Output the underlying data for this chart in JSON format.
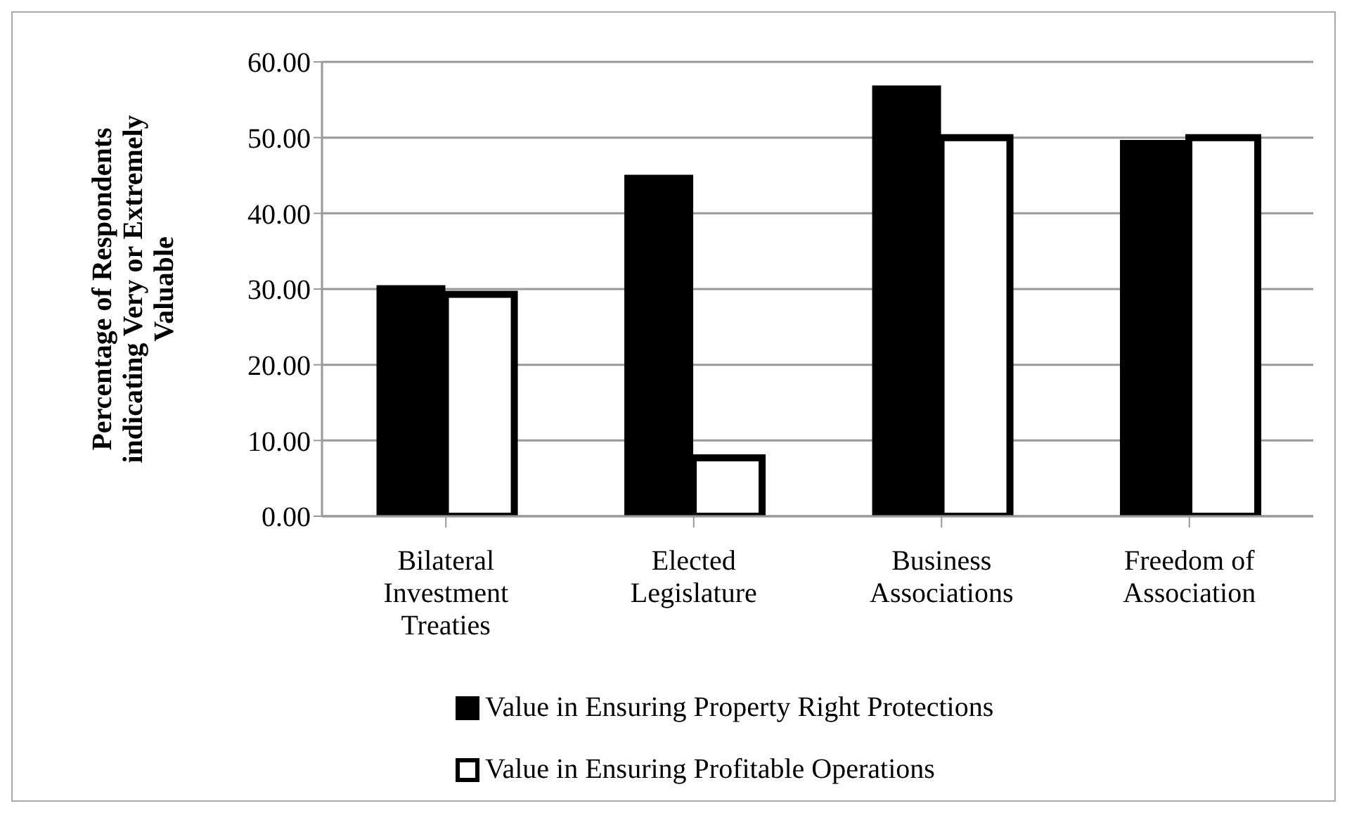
{
  "chart_data": {
    "type": "bar",
    "ylabel": "Percentage of Respondents indicating Very or Extremely Valuable",
    "categories": [
      "Bilateral Investment Treaties",
      "Elected Legislature",
      "Business Associations",
      "Freedom of Association"
    ],
    "series": [
      {
        "name": "Value in Ensuring Property Right Protections",
        "color": "#000000",
        "values": [
          30.5,
          45.1,
          56.9,
          49.7
        ]
      },
      {
        "name": "Value in Ensuring Profitable Operations",
        "color": "#ffffff",
        "values": [
          29.3,
          7.7,
          50.0,
          50.0
        ]
      }
    ],
    "ylim": [
      0,
      60
    ],
    "yticks": [
      {
        "value": 0,
        "label": "0.00"
      },
      {
        "value": 10,
        "label": "10.00"
      },
      {
        "value": 20,
        "label": "20.00"
      },
      {
        "value": 30,
        "label": "30.00"
      },
      {
        "value": 40,
        "label": "40.00"
      },
      {
        "value": 50,
        "label": "50.00"
      },
      {
        "value": 60,
        "label": "60.00"
      }
    ],
    "grid": "y",
    "legend": "bottom"
  }
}
